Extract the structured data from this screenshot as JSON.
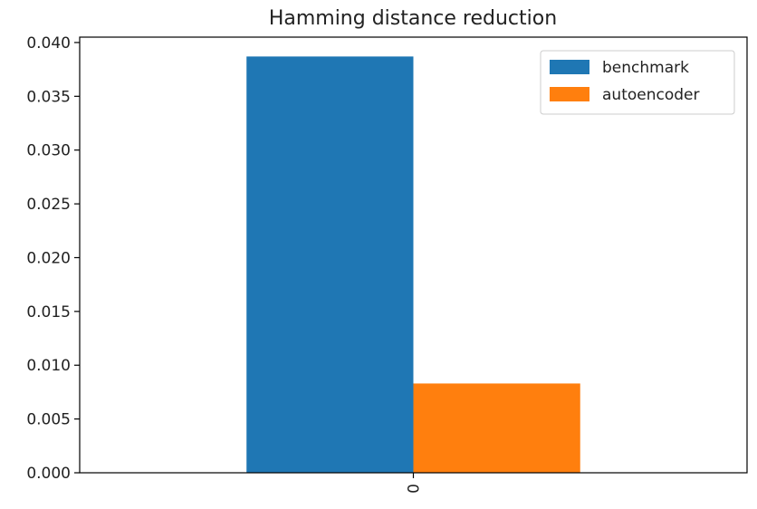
{
  "chart_data": {
    "type": "bar",
    "title": "Hamming distance reduction",
    "categories": [
      "0"
    ],
    "series": [
      {
        "name": "benchmark",
        "values": [
          0.0387
        ],
        "color": "#1f77b4"
      },
      {
        "name": "autoencoder",
        "values": [
          0.0083
        ],
        "color": "#ff7f0e"
      }
    ],
    "ylim": [
      0.0,
      0.0405
    ],
    "yticks": [
      0.0,
      0.005,
      0.01,
      0.015,
      0.02,
      0.025,
      0.03,
      0.035,
      0.04
    ],
    "ytick_labels": [
      "0.000",
      "0.005",
      "0.010",
      "0.015",
      "0.020",
      "0.025",
      "0.030",
      "0.035",
      "0.040"
    ],
    "xlabel": "",
    "ylabel": "",
    "grid": false,
    "legend": "top-right"
  }
}
